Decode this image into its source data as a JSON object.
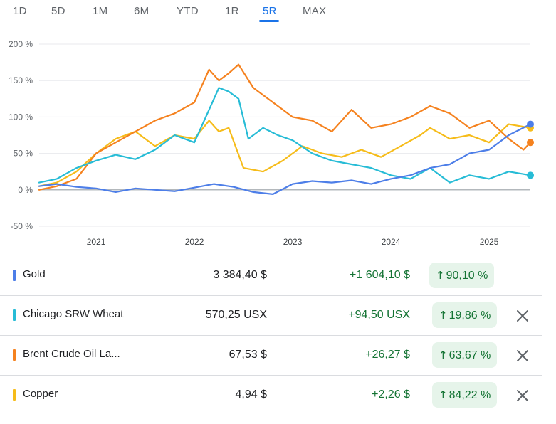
{
  "tabs": [
    {
      "label": "1D"
    },
    {
      "label": "5D"
    },
    {
      "label": "1M"
    },
    {
      "label": "6M"
    },
    {
      "label": "YTD"
    },
    {
      "label": "1R"
    },
    {
      "label": "5R",
      "active": true
    },
    {
      "label": "MAX"
    }
  ],
  "chart_data": {
    "type": "line",
    "title": "",
    "ylabel": "",
    "xlabel": "",
    "ylim": [
      -50,
      200
    ],
    "xlim": [
      2020.42,
      2025.42
    ],
    "y_ticks": [
      "200 %",
      "150 %",
      "100 %",
      "50 %",
      "0 %",
      "-50 %"
    ],
    "y_tick_values": [
      200,
      150,
      100,
      50,
      0,
      -50
    ],
    "x_ticks": [
      "2021",
      "2022",
      "2023",
      "2024",
      "2025"
    ],
    "x_tick_values": [
      2021,
      2022,
      2023,
      2024,
      2025
    ],
    "grid": "horizontal",
    "series": [
      {
        "name": "Gold",
        "color": "#4d7ee8",
        "x": [
          2020.42,
          2020.6,
          2020.8,
          2021.0,
          2021.2,
          2021.4,
          2021.6,
          2021.8,
          2022.0,
          2022.2,
          2022.4,
          2022.6,
          2022.8,
          2023.0,
          2023.2,
          2023.4,
          2023.6,
          2023.8,
          2024.0,
          2024.2,
          2024.4,
          2024.6,
          2024.8,
          2025.0,
          2025.2,
          2025.42
        ],
        "y": [
          5,
          8,
          4,
          2,
          -3,
          2,
          0,
          -2,
          3,
          8,
          4,
          -3,
          -6,
          8,
          12,
          10,
          13,
          8,
          15,
          20,
          30,
          35,
          50,
          55,
          75,
          90
        ]
      },
      {
        "name": "Chicago SRW Wheat",
        "color": "#27bcd6",
        "x": [
          2020.42,
          2020.6,
          2020.8,
          2021.0,
          2021.2,
          2021.4,
          2021.6,
          2021.8,
          2022.0,
          2022.15,
          2022.25,
          2022.35,
          2022.45,
          2022.55,
          2022.7,
          2022.85,
          2023.0,
          2023.2,
          2023.4,
          2023.6,
          2023.8,
          2024.0,
          2024.2,
          2024.4,
          2024.6,
          2024.8,
          2025.0,
          2025.2,
          2025.42
        ],
        "y": [
          10,
          15,
          30,
          40,
          48,
          42,
          55,
          75,
          65,
          110,
          140,
          135,
          125,
          70,
          85,
          75,
          68,
          50,
          40,
          35,
          30,
          20,
          15,
          30,
          10,
          20,
          15,
          25,
          20
        ]
      },
      {
        "name": "Brent Crude Oil Last Day Financial",
        "color": "#f5821f",
        "x": [
          2020.42,
          2020.6,
          2020.8,
          2021.0,
          2021.2,
          2021.4,
          2021.6,
          2021.8,
          2022.0,
          2022.15,
          2022.25,
          2022.35,
          2022.45,
          2022.6,
          2022.8,
          2023.0,
          2023.2,
          2023.4,
          2023.6,
          2023.8,
          2024.0,
          2024.2,
          2024.4,
          2024.6,
          2024.8,
          2025.0,
          2025.2,
          2025.35,
          2025.42
        ],
        "y": [
          0,
          5,
          15,
          50,
          65,
          80,
          95,
          105,
          120,
          165,
          150,
          160,
          172,
          140,
          120,
          100,
          95,
          80,
          110,
          85,
          90,
          100,
          115,
          105,
          85,
          95,
          70,
          55,
          65
        ]
      },
      {
        "name": "Copper",
        "color": "#f6bc1a",
        "x": [
          2020.42,
          2020.6,
          2020.8,
          2021.0,
          2021.2,
          2021.4,
          2021.6,
          2021.8,
          2022.0,
          2022.15,
          2022.25,
          2022.35,
          2022.5,
          2022.7,
          2022.9,
          2023.1,
          2023.3,
          2023.5,
          2023.7,
          2023.9,
          2024.1,
          2024.3,
          2024.4,
          2024.6,
          2024.8,
          2025.0,
          2025.2,
          2025.42
        ],
        "y": [
          5,
          10,
          25,
          50,
          70,
          80,
          60,
          75,
          70,
          95,
          80,
          85,
          30,
          25,
          40,
          60,
          50,
          45,
          55,
          45,
          60,
          75,
          85,
          70,
          75,
          65,
          90,
          85
        ]
      }
    ]
  },
  "rows": [
    {
      "name": "Gold",
      "color": "#4d7ee8",
      "price": "3 384,40 $",
      "change": "+1 604,10 $",
      "pct": "90,10 %",
      "closable": false
    },
    {
      "name": "Chicago SRW Wheat",
      "color": "#27bcd6",
      "price": "570,25 USX",
      "change": "+94,50 USX",
      "pct": "19,86 %",
      "closable": true
    },
    {
      "name": "Brent Crude Oil La...",
      "color": "#f5821f",
      "price": "67,53 $",
      "change": "+26,27 $",
      "pct": "63,67 %",
      "closable": true
    },
    {
      "name": "Copper",
      "color": "#f6bc1a",
      "price": "4,94 $",
      "change": "+2,26 $",
      "pct": "84,22 %",
      "closable": true
    }
  ],
  "icons": {
    "arrow": "arrow-up-icon",
    "close": "close-icon"
  }
}
